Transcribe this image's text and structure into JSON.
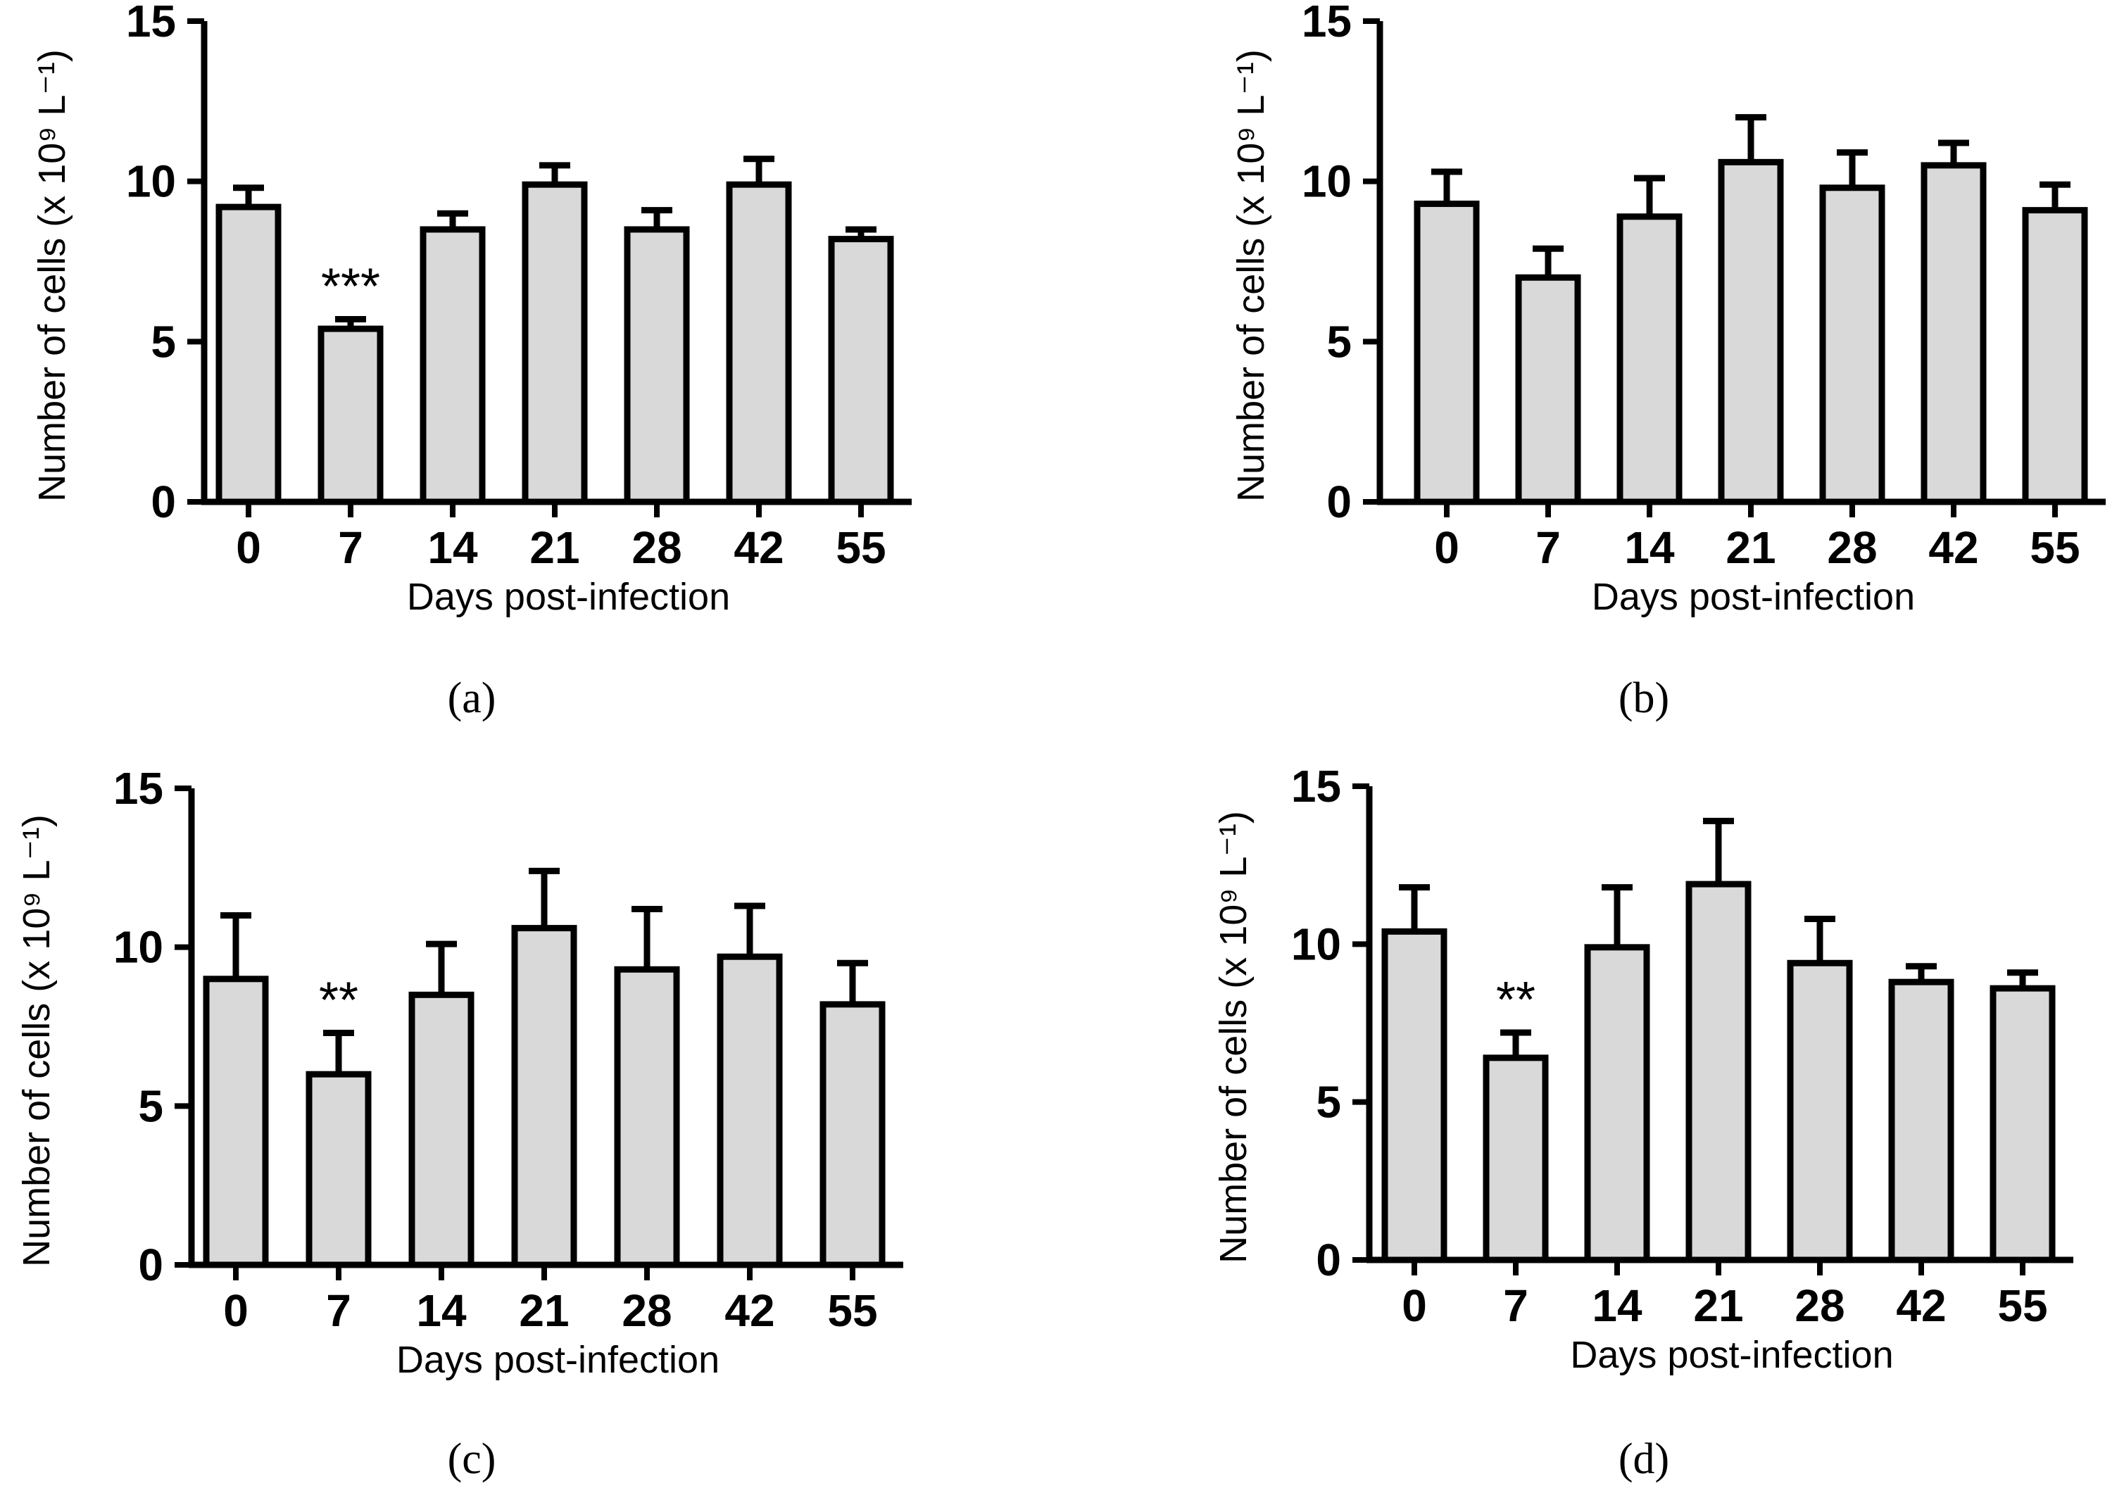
{
  "chart_data": [
    {
      "type": "bar",
      "panel": "(a)",
      "categories": [
        "0",
        "7",
        "14",
        "21",
        "28",
        "42",
        "55"
      ],
      "values": [
        9.2,
        5.4,
        8.5,
        9.9,
        8.5,
        9.9,
        8.2
      ],
      "errors": [
        0.6,
        0.3,
        0.5,
        0.6,
        0.6,
        0.8,
        0.3
      ],
      "annotations": [
        "",
        "***",
        "",
        "",
        "",
        "",
        ""
      ],
      "xlabel": "Days post-infection",
      "ylabel": "Number of cells (x 10⁹ L⁻¹)",
      "yticks": [
        0,
        5,
        10,
        15
      ],
      "ylim": [
        0,
        15
      ],
      "bar_color": "#d9d9d9",
      "edge_color": "#000000",
      "grid": false
    },
    {
      "type": "bar",
      "panel": "(b)",
      "categories": [
        "0",
        "7",
        "14",
        "21",
        "28",
        "42",
        "55"
      ],
      "values": [
        9.3,
        7.0,
        8.9,
        10.6,
        9.8,
        10.5,
        9.1
      ],
      "errors": [
        1.0,
        0.9,
        1.2,
        1.4,
        1.1,
        0.7,
        0.8
      ],
      "annotations": [
        "",
        "",
        "",
        "",
        "",
        "",
        ""
      ],
      "xlabel": "Days post-infection",
      "ylabel": "Number of cells (x 10⁹ L⁻¹)",
      "yticks": [
        0,
        5,
        10,
        15
      ],
      "ylim": [
        0,
        15
      ],
      "bar_color": "#d9d9d9",
      "edge_color": "#000000",
      "grid": false
    },
    {
      "type": "bar",
      "panel": "(c)",
      "categories": [
        "0",
        "7",
        "14",
        "21",
        "28",
        "42",
        "55"
      ],
      "values": [
        9.0,
        6.0,
        8.5,
        10.6,
        9.3,
        9.7,
        8.2
      ],
      "errors": [
        2.0,
        1.3,
        1.6,
        1.8,
        1.9,
        1.6,
        1.3
      ],
      "annotations": [
        "",
        "**",
        "",
        "",
        "",
        "",
        ""
      ],
      "xlabel": "Days post-infection",
      "ylabel": "Number of cells (x 10⁹ L⁻¹)",
      "yticks": [
        0,
        5,
        10,
        15
      ],
      "ylim": [
        0,
        15
      ],
      "bar_color": "#d9d9d9",
      "edge_color": "#000000",
      "grid": false
    },
    {
      "type": "bar",
      "panel": "(d)",
      "categories": [
        "0",
        "7",
        "14",
        "21",
        "28",
        "42",
        "55"
      ],
      "values": [
        10.4,
        6.4,
        9.9,
        11.9,
        9.4,
        8.8,
        8.6
      ],
      "errors": [
        1.4,
        0.8,
        1.9,
        2.0,
        1.4,
        0.5,
        0.5
      ],
      "annotations": [
        "",
        "**",
        "",
        "",
        "",
        "",
        ""
      ],
      "xlabel": "Days post-infection",
      "ylabel": "Number of cells (x 10⁹ L⁻¹)",
      "yticks": [
        0,
        5,
        10,
        15
      ],
      "ylim": [
        0,
        15
      ],
      "bar_color": "#d9d9d9",
      "edge_color": "#000000",
      "grid": false
    }
  ]
}
